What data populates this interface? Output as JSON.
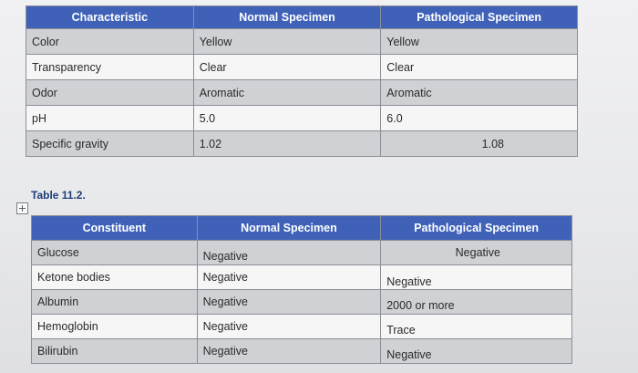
{
  "table1": {
    "headers": [
      "Characteristic",
      "Normal Specimen",
      "Pathological Specimen"
    ],
    "rows": [
      [
        "Color",
        "Yellow",
        "Yellow"
      ],
      [
        "Transparency",
        "Clear",
        "Clear"
      ],
      [
        "Odor",
        "Aromatic",
        "Aromatic"
      ],
      [
        "pH",
        "5.0",
        "6.0"
      ],
      [
        "Specific gravity",
        "1.02",
        "1.08"
      ]
    ]
  },
  "caption": "Table 11.2.",
  "table2": {
    "headers": [
      "Constituent",
      "Normal Specimen",
      "Pathological Specimen"
    ],
    "rows": [
      [
        "Glucose",
        "Negative",
        "Negative"
      ],
      [
        "Ketone bodies",
        "Negative",
        "Negative"
      ],
      [
        "Albumin",
        "Negative",
        "2000 or more"
      ],
      [
        "Hemoglobin",
        "Negative",
        "Trace"
      ],
      [
        "Bilirubin",
        "Negative",
        "Negative"
      ]
    ]
  }
}
